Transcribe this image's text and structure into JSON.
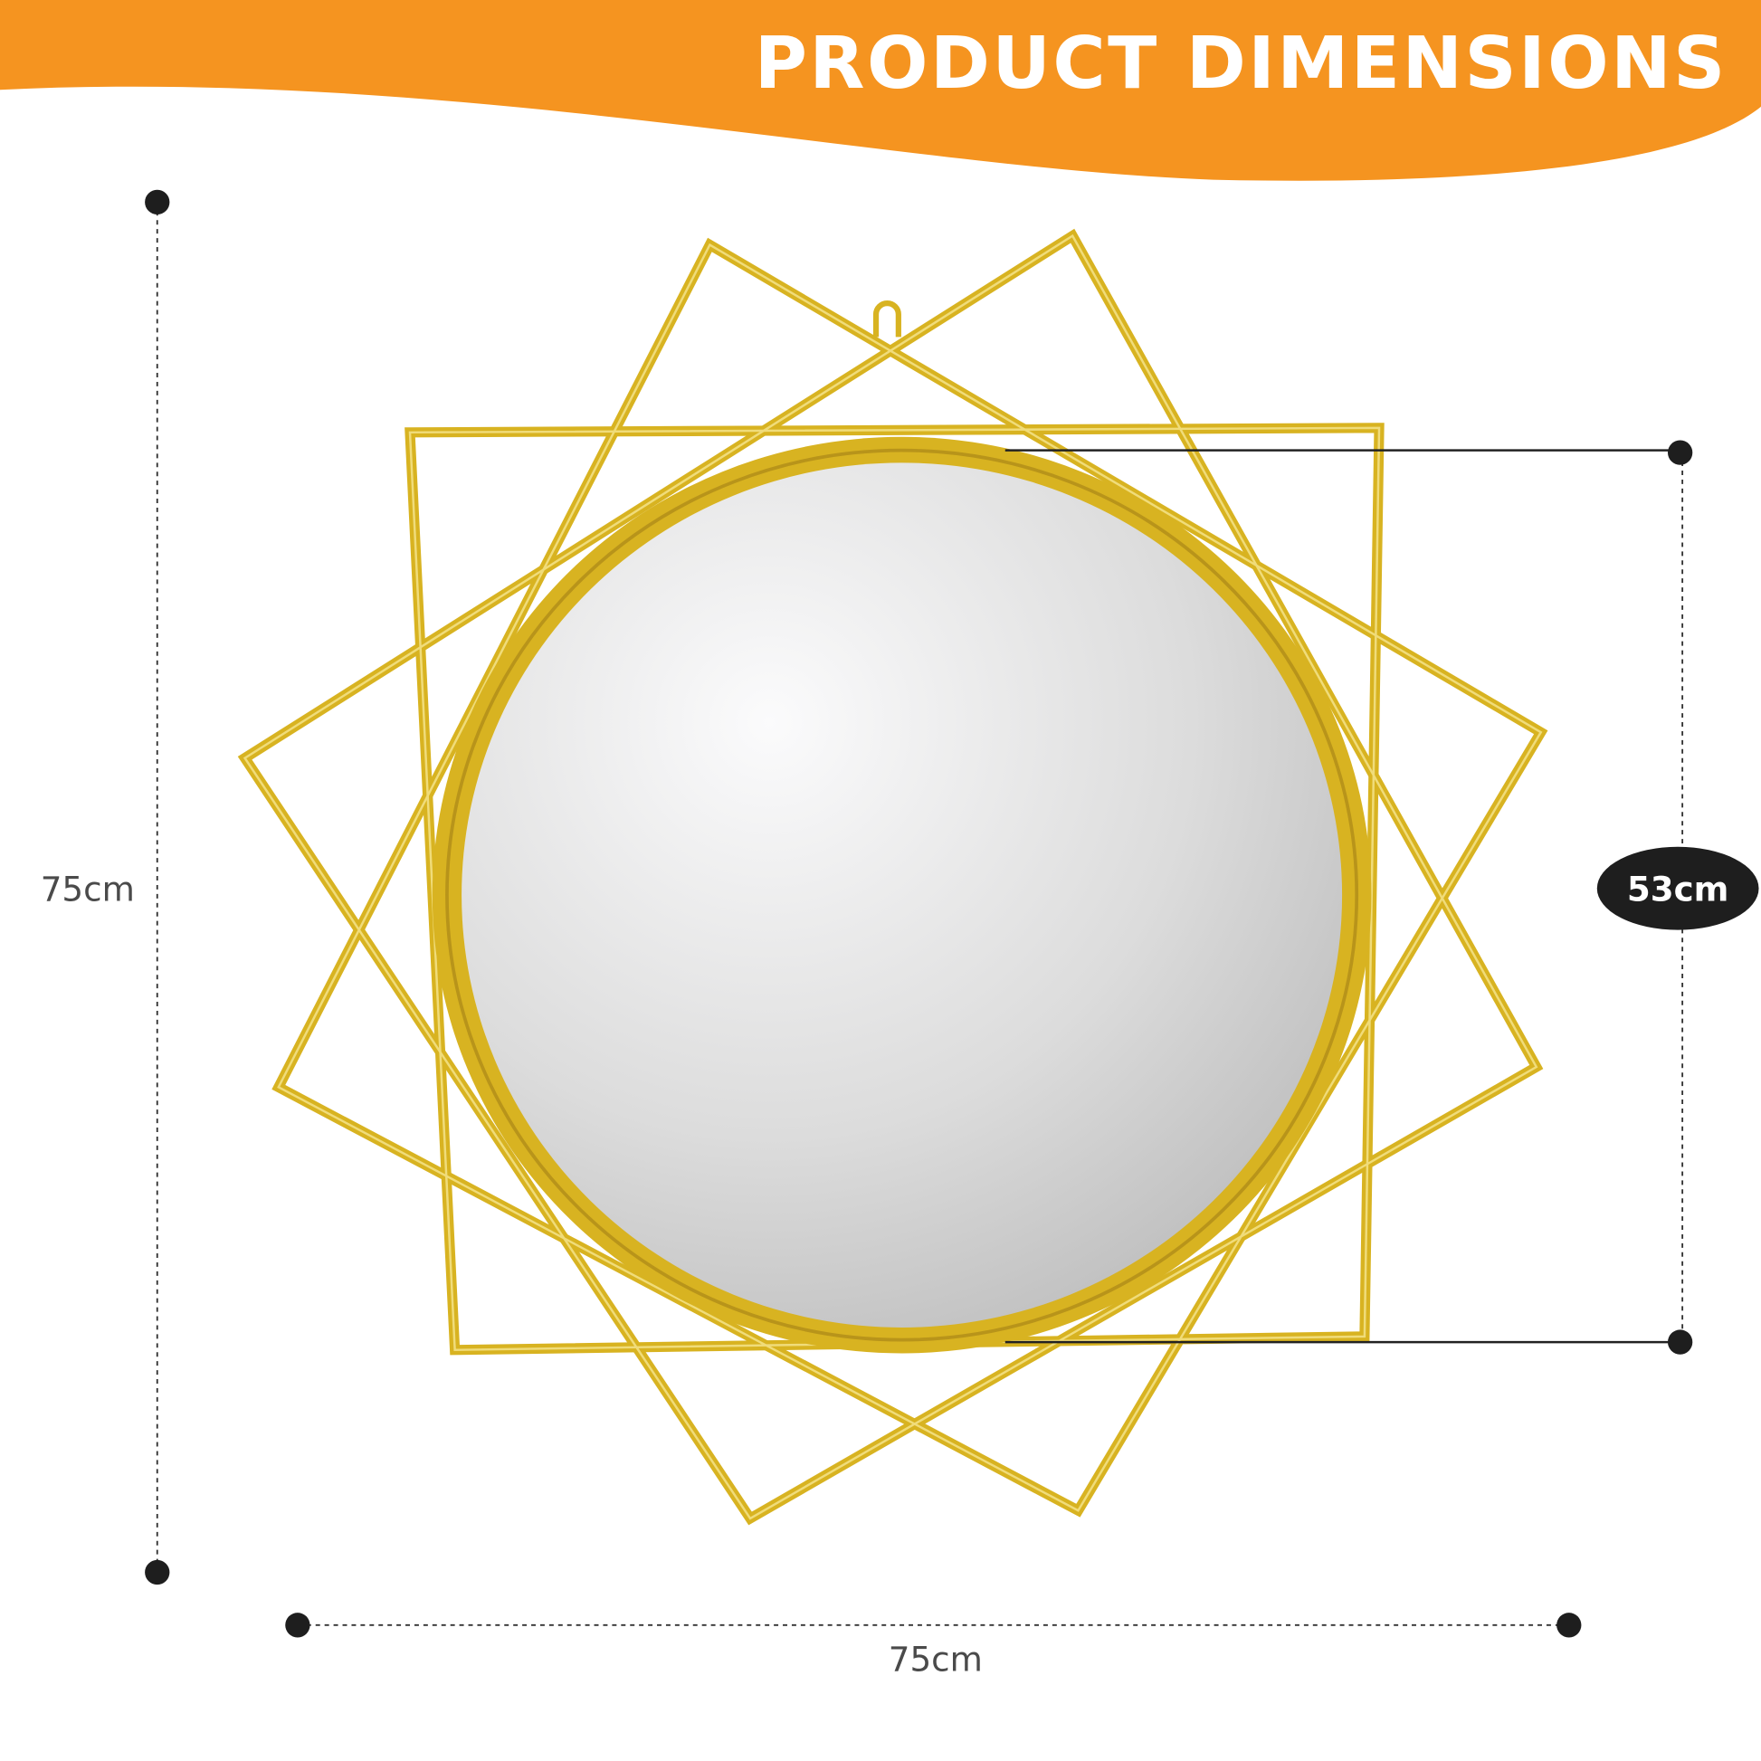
{
  "header": {
    "title": "PRODUCT DIMENSIONS",
    "banner_color": "#f59420"
  },
  "dimensions": {
    "height_label": "75cm",
    "width_label": "75cm",
    "mirror_diameter_label": "53cm"
  },
  "colors": {
    "frame_gold": "#d8b321",
    "marker": "#1e1e1e",
    "label_text": "#4a4a4a"
  }
}
